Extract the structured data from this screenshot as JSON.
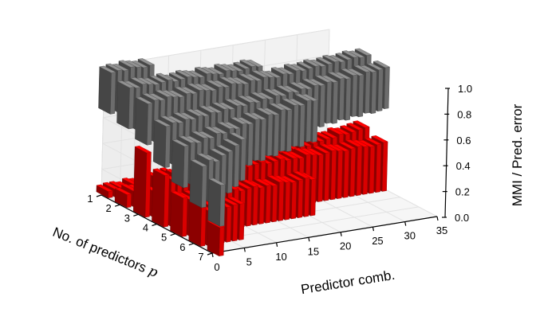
{
  "chart_data": {
    "type": "bar3d",
    "xlabel": "Predictor comb.",
    "ylabel": "No. of predictors",
    "ylabel_symbol": "p",
    "zlabel": "MMI / Pred. error",
    "x_ticks": [
      0,
      5,
      10,
      15,
      20,
      25,
      30,
      35
    ],
    "y_ticks": [
      1,
      2,
      3,
      4,
      5,
      6,
      7
    ],
    "z_ticks": [
      "0.0",
      "0.2",
      "0.4",
      "0.6",
      "0.8",
      "1.0"
    ],
    "xlim": [
      0,
      35
    ],
    "ylim": [
      1,
      7
    ],
    "zlim": [
      0,
      1
    ],
    "grid": true,
    "series": [
      {
        "name": "",
        "color": "#ff0000",
        "rows": [
          {
            "p": 1,
            "values": [
              0.05,
              0.06,
              0.06,
              0.05,
              0.07,
              0.06,
              0.05
            ]
          },
          {
            "p": 2,
            "values": [
              0.1,
              0.12,
              0.11,
              0.13,
              0.1,
              0.12,
              0.14,
              0.12,
              0.11,
              0.13,
              0.12,
              0.1,
              0.12,
              0.11,
              0.13,
              0.12,
              0.11,
              0.1,
              0.12,
              0.11,
              0.13
            ]
          },
          {
            "p": 3,
            "values": [
              0.5,
              0.2,
              0.28,
              0.22,
              0.3,
              0.26,
              0.28,
              0.24,
              0.3,
              0.27,
              0.32,
              0.3,
              0.28,
              0.3,
              0.33,
              0.31,
              0.3,
              0.32,
              0.33,
              0.32,
              0.34,
              0.33,
              0.35,
              0.34,
              0.36,
              0.35,
              0.36,
              0.37,
              0.38,
              0.38,
              0.4,
              0.39,
              0.4,
              0.41,
              0.42
            ]
          },
          {
            "p": 4,
            "values": [
              0.4,
              0.36,
              0.38,
              0.39,
              0.37,
              0.38,
              0.36,
              0.37,
              0.38,
              0.36,
              0.37,
              0.39,
              0.38,
              0.36,
              0.37,
              0.38,
              0.36,
              0.37,
              0.38,
              0.36,
              0.37,
              0.36,
              0.38,
              0.37,
              0.36,
              0.37,
              0.38,
              0.37,
              0.36,
              0.37,
              0.38,
              0.37,
              0.36,
              0.37,
              0.38
            ]
          },
          {
            "p": 5,
            "values": [
              0.3,
              0.28,
              0.29,
              0.28,
              0.3,
              0.29,
              0.28,
              0.29,
              0.3,
              0.28,
              0.29,
              0.3,
              0.28,
              0.29,
              0.28,
              0.3,
              0.29,
              0.28,
              0.29,
              0.3,
              0.28
            ]
          },
          {
            "p": 6,
            "values": [
              0.3,
              0.27,
              0.28,
              0.29,
              0.27,
              0.28,
              0.28
            ]
          },
          {
            "p": 7,
            "values": [
              0.22
            ]
          }
        ]
      },
      {
        "name": "",
        "color": "#7f7f7f",
        "rows": [
          {
            "p": 1,
            "values": [
              0.97,
              0.98,
              0.97,
              0.99,
              0.98,
              0.97,
              0.98
            ]
          },
          {
            "p": 2,
            "values": [
              0.93,
              0.92,
              0.94,
              0.93,
              0.92,
              0.93,
              0.94,
              0.92,
              0.93,
              0.94,
              0.93,
              0.92,
              0.94,
              0.93,
              0.92,
              0.94,
              0.93,
              0.92,
              0.93,
              0.94,
              0.93
            ]
          },
          {
            "p": 3,
            "values": [
              0.88,
              0.9,
              0.89,
              0.91,
              0.9,
              0.89,
              0.91,
              0.9,
              0.92,
              0.91,
              0.9,
              0.92,
              0.91,
              0.93,
              0.92,
              0.91,
              0.93,
              0.92,
              0.94,
              0.93,
              0.92,
              0.94,
              0.93,
              0.95,
              0.94,
              0.95,
              0.96,
              0.95,
              0.96,
              0.97,
              0.96,
              0.97,
              0.98,
              0.97,
              0.98
            ]
          },
          {
            "p": 4,
            "values": [
              0.78,
              0.8,
              0.79,
              0.81,
              0.8,
              0.82,
              0.81,
              0.83,
              0.82,
              0.84,
              0.83,
              0.85,
              0.84,
              0.86,
              0.85,
              0.87,
              0.86,
              0.88,
              0.87,
              0.89,
              0.88,
              0.9,
              0.89,
              0.91,
              0.9,
              0.92,
              0.91,
              0.93,
              0.92,
              0.94,
              0.93,
              0.95,
              0.94,
              0.95,
              0.96
            ]
          },
          {
            "p": 5,
            "values": [
              0.7,
              0.72,
              0.71,
              0.74,
              0.73,
              0.76,
              0.75,
              0.78,
              0.77,
              0.8,
              0.79,
              0.82,
              0.81,
              0.84,
              0.83,
              0.86,
              0.85,
              0.88,
              0.87,
              0.9,
              0.89
            ]
          },
          {
            "p": 6,
            "values": [
              0.62,
              0.66,
              0.64,
              0.68,
              0.7,
              0.74,
              0.78
            ]
          },
          {
            "p": 7,
            "values": [
              0.55
            ]
          }
        ]
      }
    ]
  }
}
